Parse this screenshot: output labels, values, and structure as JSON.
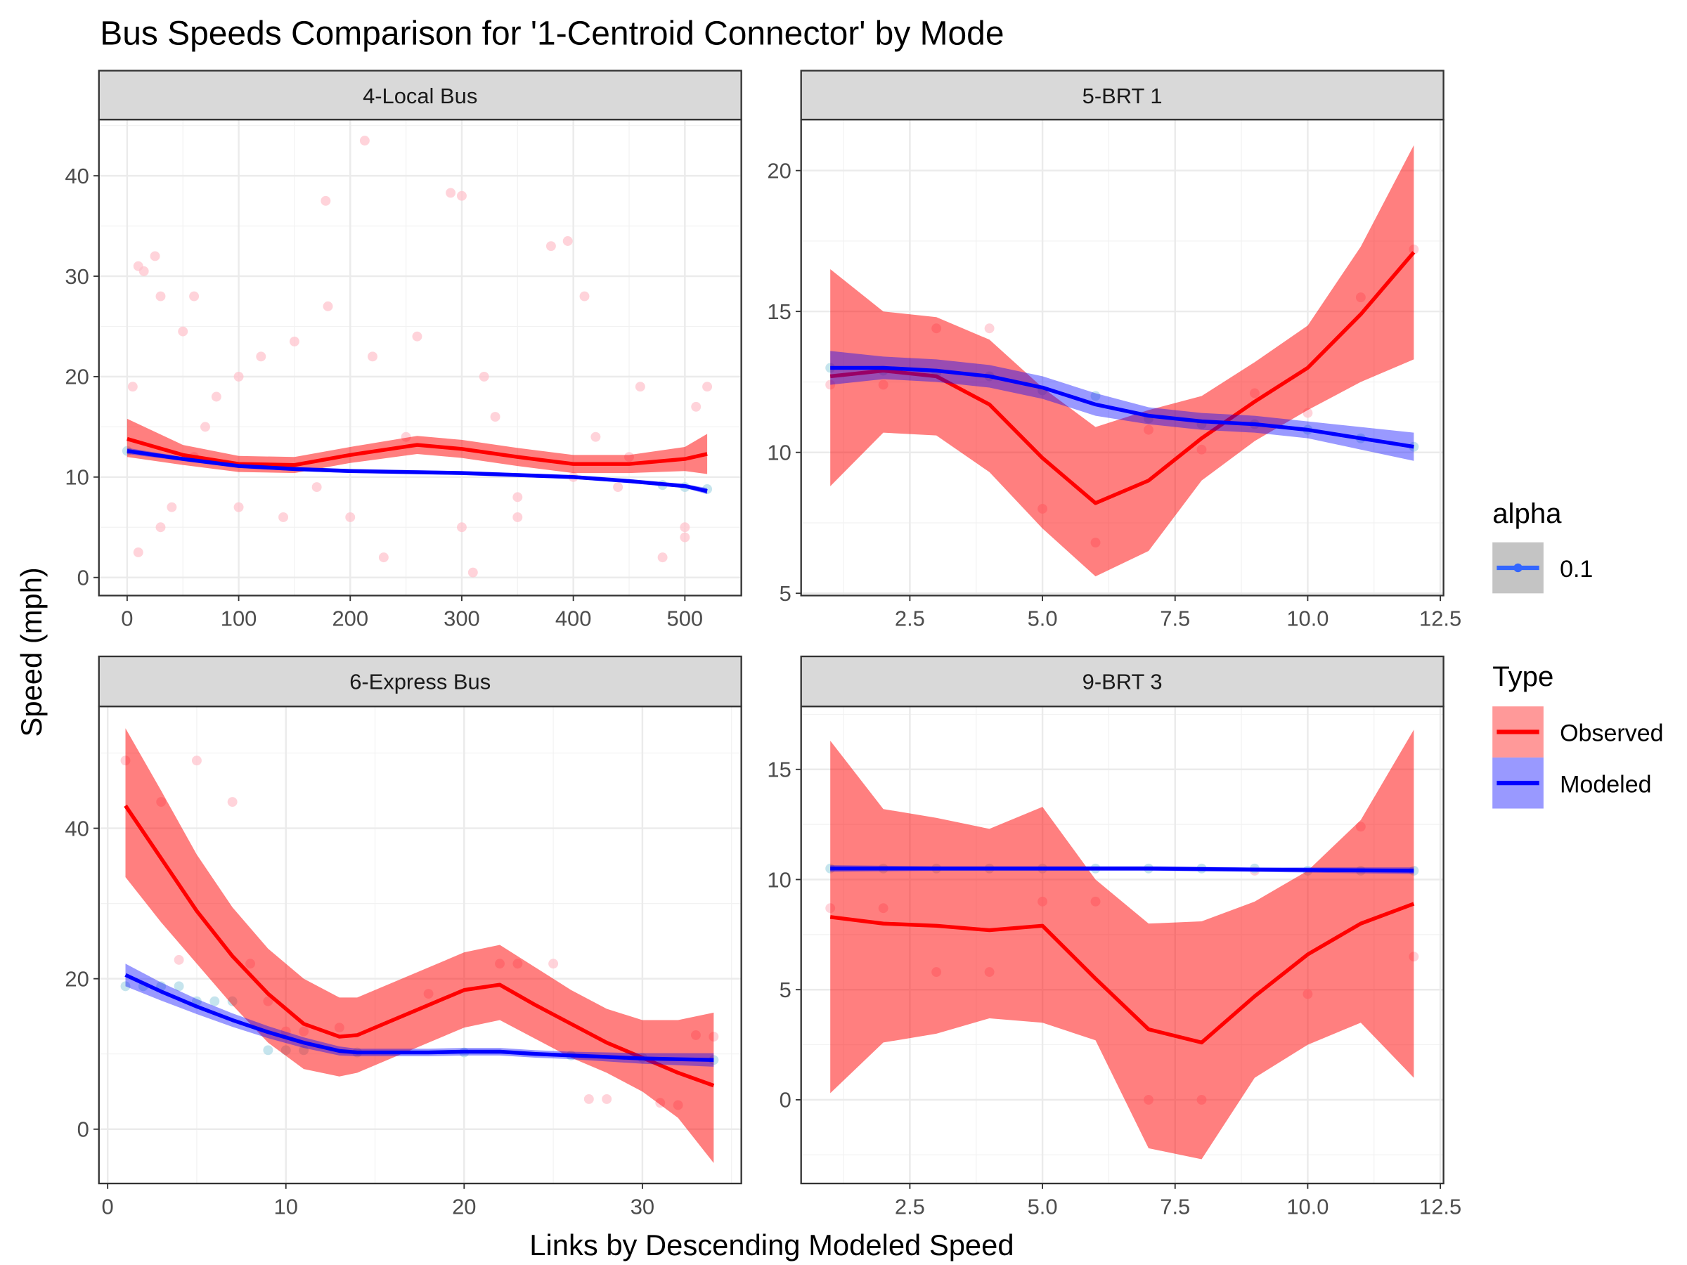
{
  "title": "Bus Speeds Comparison for '1-Centroid Connector' by Mode",
  "x_label": "Links by Descending Modeled Speed",
  "y_label": "Speed (mph)",
  "legends": {
    "alpha": {
      "title": "alpha",
      "label": "0.1"
    },
    "type": {
      "title": "Type"
    }
  },
  "chart_data": [
    {
      "type": "line",
      "title": "4-Local Bus",
      "xlim": [
        -25.3,
        550.6
      ],
      "xticks": [
        0,
        100,
        200,
        300,
        400,
        500
      ],
      "ylim": [
        -1.8,
        45.6
      ],
      "yticks": [
        0,
        10,
        20,
        30,
        40
      ],
      "grid": true,
      "series": [
        {
          "name": "Observed",
          "color": "#ff0000",
          "x": [
            0,
            50,
            100,
            150,
            200,
            260,
            300,
            350,
            400,
            450,
            500,
            520
          ],
          "values": [
            13.8,
            12.2,
            11.3,
            11.2,
            12.2,
            13.2,
            12.8,
            12.0,
            11.3,
            11.3,
            11.8,
            12.3
          ],
          "lower": [
            12.0,
            11.2,
            10.5,
            10.4,
            11.4,
            12.3,
            11.9,
            11.1,
            10.4,
            10.4,
            10.6,
            10.3
          ],
          "upper": [
            15.8,
            13.2,
            12.1,
            12.0,
            13.0,
            14.1,
            13.7,
            12.9,
            12.2,
            12.2,
            13.0,
            14.3
          ],
          "point_color": "#ffc0cb",
          "points_x": [
            5,
            10,
            15,
            25,
            30,
            10,
            40,
            60,
            50,
            80,
            100,
            120,
            140,
            150,
            178,
            180,
            213,
            220,
            230,
            260,
            290,
            300,
            310,
            320,
            330,
            350,
            380,
            395,
            400,
            410,
            420,
            440,
            460,
            480,
            500,
            510,
            520,
            300,
            200,
            100,
            60,
            250,
            450,
            30,
            70,
            170,
            350,
            500
          ],
          "points_values": [
            19,
            31,
            30.5,
            32,
            28,
            2.5,
            7,
            28,
            24.5,
            18,
            20,
            22,
            6,
            23.5,
            37.5,
            27,
            43.5,
            22,
            2,
            24,
            38.3,
            38,
            0.5,
            20,
            16,
            6,
            33,
            33.5,
            10,
            28,
            14,
            9,
            19,
            2,
            5,
            17,
            19,
            5,
            6,
            7,
            12,
            14,
            12,
            5,
            15,
            9,
            8,
            4
          ]
        },
        {
          "name": "Modeled",
          "color": "#0000ff",
          "x": [
            0,
            50,
            100,
            150,
            200,
            300,
            400,
            450,
            500,
            520
          ],
          "values": [
            12.6,
            11.8,
            11.1,
            10.8,
            10.6,
            10.4,
            10.0,
            9.6,
            9.1,
            8.6
          ],
          "lower": [
            12.3,
            11.6,
            10.9,
            10.6,
            10.4,
            10.2,
            9.8,
            9.4,
            8.9,
            8.3
          ],
          "upper": [
            12.9,
            12.0,
            11.3,
            11.0,
            10.8,
            10.6,
            10.2,
            9.8,
            9.3,
            8.9
          ],
          "point_color": "#add8e6",
          "points_x": [
            0,
            480,
            500,
            520
          ],
          "points_values": [
            12.6,
            9.2,
            9.0,
            8.8
          ]
        }
      ]
    },
    {
      "type": "line",
      "title": "5-BRT 1",
      "xlim": [
        0.45,
        12.56
      ],
      "xticks": [
        2.5,
        {
          "value": 5,
          "label": "5.0"
        },
        7.5,
        {
          "value": 10,
          "label": "10.0"
        },
        12.5
      ],
      "ylim": [
        4.92,
        21.81
      ],
      "yticks": [
        5,
        10,
        15,
        20
      ],
      "grid": true,
      "series": [
        {
          "name": "Observed",
          "color": "#ff0000",
          "x": [
            1,
            2,
            3,
            4,
            5,
            6,
            7,
            8,
            9,
            10,
            11,
            12
          ],
          "values": [
            12.7,
            12.9,
            12.7,
            11.7,
            9.8,
            8.2,
            9.0,
            10.5,
            11.8,
            13.0,
            14.9,
            17.1
          ],
          "lower": [
            8.8,
            10.7,
            10.6,
            9.3,
            7.3,
            5.6,
            6.5,
            9.0,
            10.4,
            11.5,
            12.5,
            13.3
          ],
          "upper": [
            16.5,
            15.0,
            14.8,
            14.0,
            12.3,
            10.9,
            11.5,
            12.0,
            13.2,
            14.5,
            17.3,
            20.9
          ],
          "point_color": "#ffc0cb",
          "points_x": [
            1,
            2,
            3,
            4,
            5,
            6,
            7,
            8,
            9,
            10,
            11,
            12
          ],
          "points_values": [
            12.4,
            12.4,
            14.4,
            14.4,
            8.0,
            6.8,
            10.8,
            10.1,
            12.1,
            11.4,
            15.5,
            17.2
          ]
        },
        {
          "name": "Modeled",
          "color": "#0000ff",
          "x": [
            1,
            2,
            3,
            4,
            5,
            6,
            7,
            8,
            9,
            10,
            11,
            12
          ],
          "values": [
            13.0,
            13.0,
            12.9,
            12.7,
            12.3,
            11.7,
            11.3,
            11.1,
            11.0,
            10.8,
            10.5,
            10.2
          ],
          "lower": [
            12.4,
            12.6,
            12.5,
            12.3,
            11.9,
            11.3,
            11.0,
            10.8,
            10.7,
            10.5,
            10.1,
            9.7
          ],
          "upper": [
            13.6,
            13.4,
            13.3,
            13.1,
            12.7,
            12.1,
            11.6,
            11.4,
            11.3,
            11.1,
            10.9,
            10.7
          ],
          "point_color": "#add8e6",
          "points_x": [
            1,
            2,
            3,
            4,
            5,
            6,
            7,
            8,
            9,
            10,
            11,
            12
          ],
          "points_values": [
            13.0,
            12.9,
            12.8,
            12.7,
            12.2,
            12.0,
            11.2,
            11.0,
            11.0,
            10.8,
            10.5,
            10.2
          ]
        }
      ]
    },
    {
      "type": "line",
      "title": "6-Express Bus",
      "xlim": [
        -0.49,
        35.55
      ],
      "xticks": [
        0,
        10,
        20,
        30
      ],
      "ylim": [
        -7.22,
        56.2
      ],
      "yticks": [
        0,
        20,
        40
      ],
      "grid": true,
      "series": [
        {
          "name": "Observed",
          "color": "#ff0000",
          "x": [
            1,
            3,
            5,
            7,
            9,
            11,
            13,
            14,
            16,
            18,
            20,
            22,
            24,
            26,
            28,
            30,
            32,
            34
          ],
          "values": [
            43,
            36,
            29,
            23,
            18,
            14,
            12.3,
            12.5,
            14.5,
            16.5,
            18.5,
            19.2,
            16.5,
            14,
            11.5,
            9.5,
            7.5,
            5.8
          ],
          "lower": [
            33.5,
            27.5,
            22,
            16.5,
            11.5,
            8,
            7,
            7.5,
            9.5,
            11.5,
            13.5,
            14.5,
            12,
            9.5,
            7.5,
            5,
            1.5,
            -4.5
          ],
          "upper": [
            53.3,
            45,
            36.5,
            29.5,
            24,
            20,
            17.5,
            17.5,
            19.5,
            21.5,
            23.5,
            24.5,
            21.5,
            18.5,
            16,
            14.5,
            14.5,
            15.5
          ],
          "point_color": "#ffc0cb",
          "points_x": [
            1,
            3,
            4,
            5,
            7,
            8,
            9,
            10,
            11,
            13,
            18,
            22,
            23,
            25,
            27,
            28,
            31,
            32,
            33,
            34
          ],
          "points_values": [
            49,
            43.5,
            22.5,
            49,
            43.5,
            22,
            17,
            13,
            13,
            13.5,
            18,
            22,
            22,
            22,
            4,
            4,
            3.5,
            3.2,
            12.5,
            12.3
          ]
        },
        {
          "name": "Modeled",
          "color": "#0000ff",
          "x": [
            1,
            3,
            5,
            7,
            9,
            11,
            13,
            14,
            16,
            18,
            20,
            22,
            24,
            26,
            28,
            30,
            32,
            34
          ],
          "values": [
            20.5,
            18.3,
            16.3,
            14.5,
            12.9,
            11.5,
            10.4,
            10.2,
            10.2,
            10.2,
            10.3,
            10.3,
            10.0,
            9.8,
            9.6,
            9.4,
            9.3,
            9.2
          ],
          "lower": [
            19.0,
            17.1,
            15.3,
            13.6,
            12.1,
            10.8,
            9.8,
            9.7,
            9.7,
            9.7,
            9.8,
            9.8,
            9.5,
            9.3,
            9.0,
            8.7,
            8.5,
            8.3
          ],
          "upper": [
            22.0,
            19.5,
            17.3,
            15.4,
            13.7,
            12.2,
            11.0,
            10.7,
            10.7,
            10.7,
            10.8,
            10.8,
            10.5,
            10.3,
            10.2,
            10.1,
            10.1,
            10.1
          ],
          "point_color": "#add8e6",
          "points_x": [
            1,
            2,
            3,
            4,
            5,
            6,
            7,
            9,
            10,
            11,
            14,
            20,
            26,
            30,
            34
          ],
          "points_values": [
            19,
            19,
            19,
            19,
            17,
            17,
            17,
            10.5,
            10.5,
            10.5,
            10.2,
            10.2,
            9.8,
            9.5,
            9.2
          ]
        }
      ]
    },
    {
      "type": "line",
      "title": "9-BRT 3",
      "xlim": [
        0.45,
        12.56
      ],
      "xticks": [
        2.5,
        {
          "value": 5,
          "label": "5.0"
        },
        7.5,
        {
          "value": 10,
          "label": "10.0"
        },
        12.5
      ],
      "ylim": [
        -3.8,
        17.86
      ],
      "yticks": [
        0,
        5,
        10,
        15
      ],
      "grid": true,
      "series": [
        {
          "name": "Observed",
          "color": "#ff0000",
          "x": [
            1,
            2,
            3,
            4,
            5,
            6,
            7,
            8,
            9,
            10,
            11,
            12
          ],
          "values": [
            8.3,
            8.0,
            7.9,
            7.7,
            7.9,
            5.5,
            3.2,
            2.6,
            4.7,
            6.6,
            8.0,
            8.9
          ],
          "lower": [
            0.3,
            2.6,
            3.0,
            3.7,
            3.5,
            2.7,
            -2.2,
            -2.7,
            1.0,
            2.5,
            3.5,
            1.0
          ],
          "upper": [
            16.3,
            13.2,
            12.8,
            12.3,
            13.3,
            10.0,
            8.0,
            8.1,
            9.0,
            10.4,
            12.7,
            16.8
          ],
          "point_color": "#ffc0cb",
          "points_x": [
            1,
            2,
            3,
            4,
            5,
            6,
            7,
            8,
            9,
            10,
            11,
            12
          ],
          "points_values": [
            8.7,
            8.7,
            5.8,
            5.8,
            9.0,
            9.0,
            0,
            0,
            10.4,
            4.8,
            12.4,
            6.5
          ]
        },
        {
          "name": "Modeled",
          "color": "#0000ff",
          "x": [
            1,
            3,
            5,
            7,
            9,
            12
          ],
          "values": [
            10.5,
            10.5,
            10.5,
            10.5,
            10.45,
            10.4
          ],
          "lower": [
            10.35,
            10.4,
            10.4,
            10.4,
            10.35,
            10.25
          ],
          "upper": [
            10.65,
            10.6,
            10.6,
            10.6,
            10.55,
            10.55
          ],
          "point_color": "#add8e6",
          "points_x": [
            1,
            2,
            3,
            4,
            5,
            6,
            7,
            8,
            9,
            10,
            11,
            12
          ],
          "points_values": [
            10.5,
            10.5,
            10.5,
            10.5,
            10.5,
            10.5,
            10.5,
            10.5,
            10.5,
            10.4,
            10.4,
            10.4
          ]
        }
      ]
    }
  ]
}
